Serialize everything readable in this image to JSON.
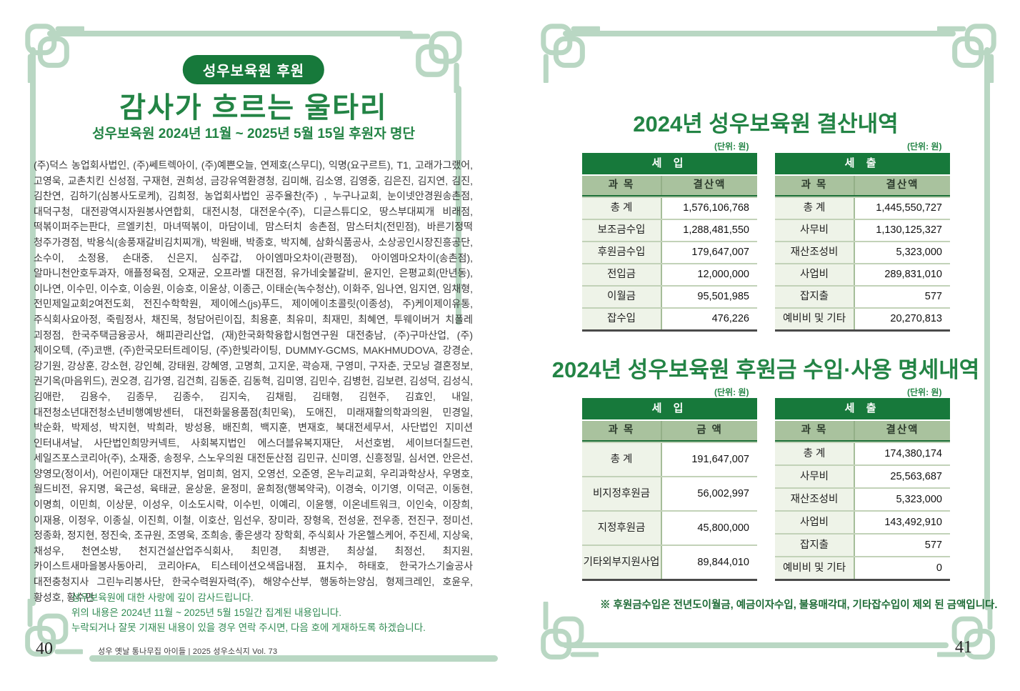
{
  "left_page": {
    "badge": "성우보육원 후원",
    "title": "감사가 흐르는 울타리",
    "subtitle": "성우보육원 2024년 11월 ~ 2025년 5월 15일 후원자 명단",
    "donor_list": "(주)덕스 농업회사법인, (주)쎄트렉아이, (주)예쁜오늘, 연제호(스무디), 익명(요구르트), T1, 고래가그랬어, 고영욱, 교촌치킨 신성점, 구재현, 권희성, 금강유역환경청, 김미해, 김소영, 김영중, 김은진, 김지연, 김진, 김찬연, 김하기(심봉사도로케), 김희정, 농업회사법인 공주율찬(주) , 누구나교회, 눈이넷안경원송촌점, 대덕구청, 대전광역시자원봉사연합회, 대전시청, 대전운수(주), 디귿스튜디오, 땅스부대찌개 비래점, 떡볶이퍼주는판다, 르엘키친, 마녀떡볶이, 마담이네, 맘스터치 송촌점, 맘스터치(전민점), 바른기정떡 청주가경점, 박용식(송풍재갈비김치찌개), 박원배, 박종호, 박지혜, 삼화식품공사, 소상공인시장진흥공단, 소수이, 소정용, 손대중, 신은지, 심주갑, 아이엠마오차이(관평점), 아이엠마오차이(송촌점), 알마니천안호두과자, 애플정육점, 오재균, 오프라벨 대전점, 유가네숯불갈비, 윤지인, 은평교회(만년동), 이나연, 이수민, 이수호, 이승원, 이승호, 이윤상, 이종근, 이태순(녹수청산), 이화주, 임나연, 임지연, 임채형, 전민제일교회2여전도회, 전진수학학원, 제이에스(js)푸드, 제이에이초콜릿(이종성), 주)케이제이유통, 주식회사요아정, 죽림정사, 채진목, 청담어린이집, 최용훈, 최유미, 최재민, 최혜연, 투웨이버거 치폴레 괴정점, 한국주택금융공사, 해피관리산업, (재)한국화학융합시험연구원 대전충남, (주)구마산업, (주)제이오텍, (주)코밴, (주)한국모터트레이딩, (주)한빛라이팅, DUMMY-GCMS, MAKHMUDOVA, 강경순, 강기원, 강상훈, 강소현, 강인혜, 강태원, 강혜영, 고명희, 고지운, 곽승재, 구영미, 구자춘, 굿모닝 결혼정보, 권기옥(마음위드), 권오경, 김가영, 김건희, 김동준, 김동혁, 김미영, 김민수, 김병헌, 김보련, 김성덕, 김성식, 김애란, 김용수, 김종무, 김종수, 김지숙, 김채림, 김태형, 김현주, 김효인, 내일, 대전청소년대전청소년비행예방센터, 대전화물용품점(최민욱), 도애진, 미래재활의학과의원, 민경일, 박순화, 박제성, 박지현, 박희라, 방성용, 배진희, 백지훈, 변재호, 북대전세무서, 사단법인 지미션 인터내셔날, 사단법인희망커넥트, 사회복지법인 에스더블유복지재단, 서선호범, 세이브더칠드런, 세일즈포스코리아(주), 소재중, 송정우, 스노우의원 대전둔산점 김민규, 신미영, 신흥정밀, 심서연, 안은선, 양영모(정이서), 어린이재단 대전지부, 엄미희, 엄지, 오영선, 오준영, 온누리교회, 우리과학상사, 우명호, 월드비전, 유지명, 육근성, 육태균, 윤상윤, 윤정미, 윤희정(행복약국), 이경숙, 이기영, 이덕곤, 이동현, 이명희, 이민희, 이상문, 이성우, 이소도시락, 이수빈, 이예리, 이윤행, 이온네트워크, 이인숙, 이장희, 이재용, 이정우, 이종실, 이진희, 이철, 이호산, 임선우, 장미라, 장형옥, 전성윤, 전우종, 전진구, 정미선, 정종화, 정지현, 정진숙, 조규원, 조영욱, 조희송, 좋은생각 장학회, 주식회사 가온헬스케어, 주진세, 지상욱, 채성우, 천연소방, 천지건설산업주식회사, 최민경, 최병관, 최상설, 최정선, 최지원, 카이스트새마을봉사동아리, 코리아FA, 티스테이션오색읍내점, 표치수, 하태호, 한국가스기술공사 대전충청지사 그린누리봉사단, 한국수력원자력(주), 해양수산부, 행동하는양심, 형제크레인, 호윤우, 황성호, 황수만",
    "note_line1": "성우보육원에 대한 사랑에 깊이 감사드립니다.",
    "note_line2": "위의 내용은 2024년 11월 ~ 2025년 5월 15일간 집계된 내용입니다.",
    "note_line3": "누락되거나 잘못 기재된 내용이 있을 경우 연락 주시면, 다음 호에 게재하도록 하겠습니다.",
    "page_number": "40",
    "footer_text": "성우 옛날 통나무집 아이들 | 2025 성우소식지 Vol. 73"
  },
  "right_page": {
    "section1": {
      "title": "2024년 성우보육원 결산내역",
      "unit_label_left": "(단위: 원)",
      "unit_label_right": "(단위: 원)",
      "income_table": {
        "title": "세 입",
        "columns": [
          "과 목",
          "결산액"
        ],
        "rows": [
          [
            "총 계",
            "1,576,106,768"
          ],
          [
            "보조금수입",
            "1,288,481,550"
          ],
          [
            "후원금수입",
            "179,647,007"
          ],
          [
            "전입금",
            "12,000,000"
          ],
          [
            "이월금",
            "95,501,985"
          ],
          [
            "잡수입",
            "476,226"
          ]
        ]
      },
      "expense_table": {
        "title": "세 출",
        "columns": [
          "과 목",
          "결산액"
        ],
        "rows": [
          [
            "총 계",
            "1,445,550,727"
          ],
          [
            "사무비",
            "1,130,125,327"
          ],
          [
            "재산조성비",
            "5,323,000"
          ],
          [
            "사업비",
            "289,831,010"
          ],
          [
            "잡지출",
            "577"
          ],
          [
            "예비비 및 기타",
            "20,270,813"
          ]
        ]
      }
    },
    "section2": {
      "title": "2024년 성우보육원 후원금 수입·사용 명세내역",
      "unit_label_left": "(단위: 원)",
      "unit_label_right": "(단위: 원)",
      "income_table": {
        "title": "세 입",
        "columns": [
          "과 목",
          "금 액"
        ],
        "rows": [
          [
            "총 계",
            "191,647,007"
          ],
          [
            "비지정후원금",
            "56,002,997"
          ],
          [
            "지정후원금",
            "45,800,000"
          ],
          [
            "기타외부지원사업",
            "89,844,010"
          ]
        ]
      },
      "expense_table": {
        "title": "세 출",
        "columns": [
          "과 목",
          "결산액"
        ],
        "rows": [
          [
            "총 계",
            "174,380,174"
          ],
          [
            "사무비",
            "25,563,687"
          ],
          [
            "재산조성비",
            "5,323,000"
          ],
          [
            "사업비",
            "143,492,910"
          ],
          [
            "잡지출",
            "577"
          ],
          [
            "예비비 및 기타",
            "0"
          ]
        ]
      }
    },
    "footnote": "※ 후원금수입은 전년도이월금, 예금이자수입, 불용매각대, 기타잡수입이 제외 된 금액입니다.",
    "page_number": "41"
  },
  "colors": {
    "brand_dark_green": "#17793b",
    "title_green": "#238445",
    "ornament_green": "#b9d7c3",
    "header_sage": "#a9c29e",
    "row_light_green": "#eef3e8"
  }
}
